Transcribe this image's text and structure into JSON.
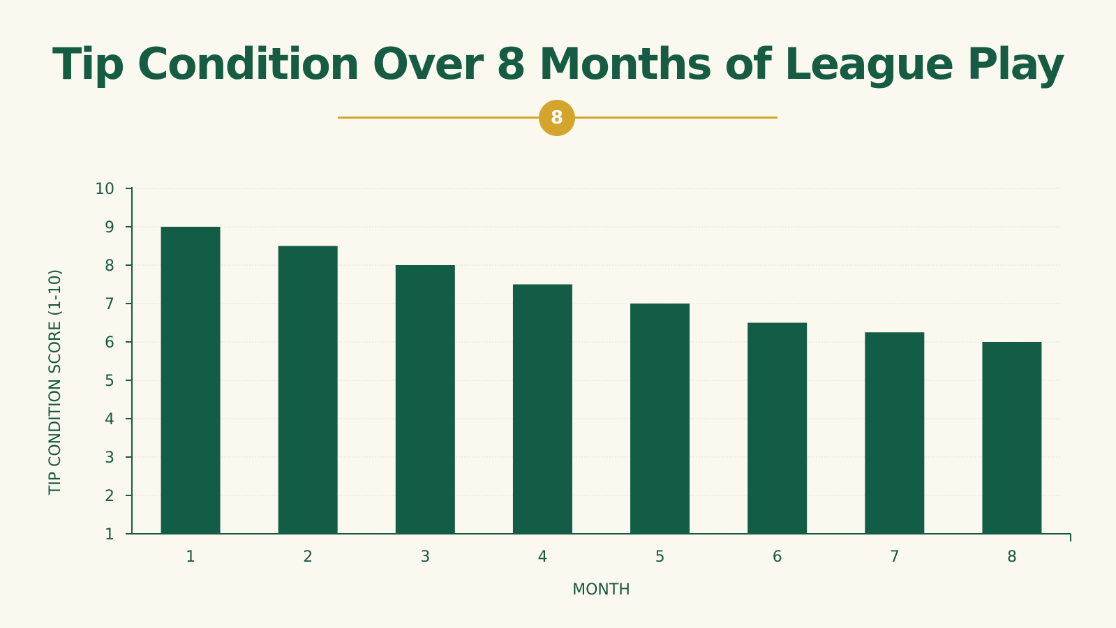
{
  "header": {
    "title": "Tip Condition Over 8 Months of League Play",
    "badge": "8"
  },
  "colors": {
    "background": "#fbf8f0",
    "bar": "#135c45",
    "accent": "#d4a52c",
    "text": "#155c43"
  },
  "chart_data": {
    "type": "bar",
    "categories": [
      "1",
      "2",
      "3",
      "4",
      "5",
      "6",
      "7",
      "8"
    ],
    "values": [
      9,
      8.5,
      8,
      7.5,
      7,
      6.5,
      6.25,
      6
    ],
    "title": "",
    "xlabel": "MONTH",
    "ylabel": "TIP CONDITION SCORE (1-10)",
    "ylim": [
      1,
      10
    ],
    "yticks": [
      1,
      2,
      3,
      4,
      5,
      6,
      7,
      8,
      9,
      10
    ],
    "grid": true,
    "legend": "none"
  }
}
